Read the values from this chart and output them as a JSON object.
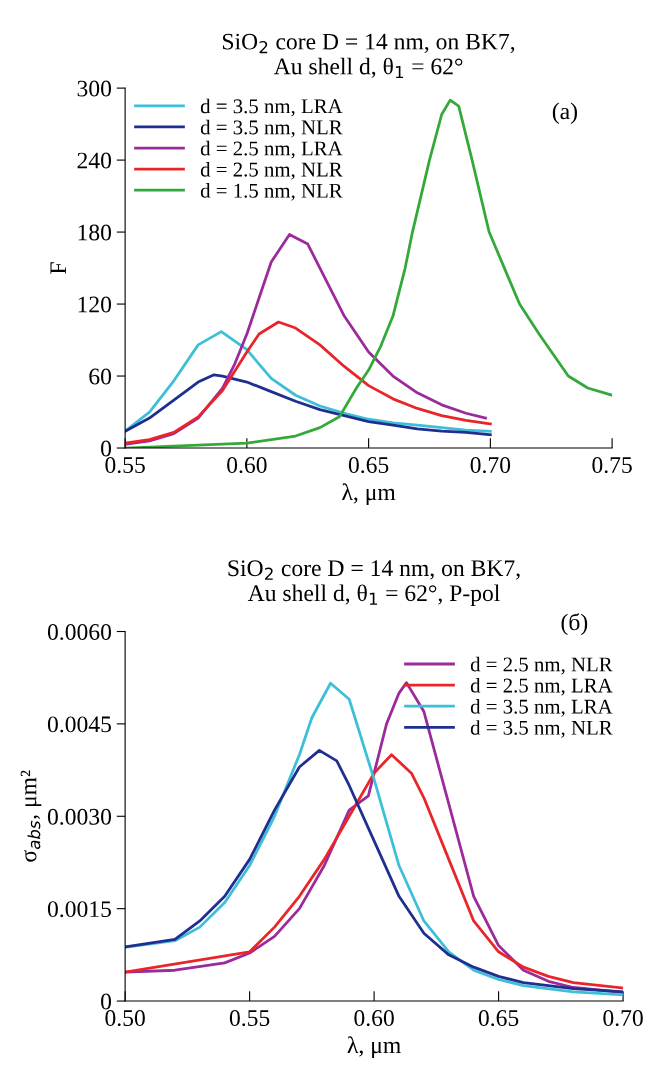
{
  "chart_data": [
    {
      "type": "line",
      "title": "SiO$_{2}$ core D = 14 nm, on BK7,\nAu shell d, θ$_{1}$ = 62°",
      "xlabel": "λ, μm",
      "ylabel": "F",
      "annotations": [
        "(a)"
      ],
      "xlim": [
        0.55,
        0.75
      ],
      "xticks": [
        0.55,
        {
          "value": 0.6,
          "label": "0.60"
        },
        0.65,
        {
          "value": 0.7,
          "label": "0.70"
        },
        0.75
      ],
      "ylim": [
        0,
        300
      ],
      "yticks": [
        0,
        60,
        120,
        180,
        240,
        300
      ],
      "grid": false,
      "legend": "top left",
      "series": [
        {
          "name": "d = 3.5 nm, LRA",
          "color": "#3dbfd8",
          "x": [
            0.55,
            0.56,
            0.57,
            0.58,
            0.5895,
            0.6,
            0.605,
            0.61,
            0.62,
            0.63,
            0.64,
            0.65,
            0.66,
            0.67,
            0.68,
            0.69,
            0.7
          ],
          "values": [
            14,
            30,
            56,
            86,
            97,
            82,
            70,
            58,
            44,
            35,
            29,
            24,
            21,
            19,
            17,
            15,
            14
          ]
        },
        {
          "name": "d = 3.5 nm, NLR",
          "color": "#1f2f8f",
          "x": [
            0.55,
            0.56,
            0.57,
            0.58,
            0.5865,
            0.59,
            0.6,
            0.61,
            0.62,
            0.63,
            0.64,
            0.65,
            0.66,
            0.67,
            0.68,
            0.69,
            0.7
          ],
          "values": [
            14,
            25,
            40,
            55,
            61,
            60,
            55,
            47,
            39,
            32,
            27,
            22,
            19,
            16,
            14,
            13,
            11
          ]
        },
        {
          "name": "d = 2.5 nm, LRA",
          "color": "#9b2a9b",
          "x": [
            0.55,
            0.56,
            0.57,
            0.58,
            0.59,
            0.595,
            0.6,
            0.605,
            0.61,
            0.6175,
            0.625,
            0.63,
            0.64,
            0.65,
            0.66,
            0.67,
            0.68,
            0.69,
            0.698
          ],
          "values": [
            3,
            6,
            12,
            25,
            50,
            70,
            95,
            125,
            155,
            178,
            170,
            150,
            110,
            80,
            60,
            46,
            36,
            29,
            25
          ]
        },
        {
          "name": "d = 2.5 nm, NLR",
          "color": "#e8262a",
          "x": [
            0.55,
            0.56,
            0.57,
            0.58,
            0.59,
            0.6,
            0.605,
            0.613,
            0.62,
            0.63,
            0.64,
            0.65,
            0.66,
            0.67,
            0.68,
            0.69,
            0.7
          ],
          "values": [
            4,
            7,
            13,
            26,
            48,
            80,
            95,
            105,
            100,
            86,
            68,
            52,
            41,
            33,
            27,
            23,
            20
          ]
        },
        {
          "name": "d = 1.5 nm, NLR",
          "color": "#34a93a",
          "x": [
            0.55,
            0.6,
            0.62,
            0.63,
            0.638,
            0.645,
            0.65,
            0.655,
            0.66,
            0.665,
            0.668,
            0.675,
            0.68,
            0.6835,
            0.687,
            0.6925,
            0.6995,
            0.712,
            0.72,
            0.732,
            0.74,
            0.75
          ],
          "values": [
            0,
            4,
            10,
            17,
            26,
            50,
            65,
            85,
            110,
            150,
            180,
            240,
            278,
            290,
            285,
            240,
            180,
            120,
            95,
            60,
            50,
            44
          ]
        }
      ]
    },
    {
      "type": "line",
      "title": "SiO$_{2}$ core D = 14 nm, on BK7,\nAu shell d, θ$_{1}$ = 62°, P-pol",
      "xlabel": "λ, μm",
      "ylabel": "σ$_{abs}$, μm²",
      "annotations": [
        "(б)"
      ],
      "xlim": [
        0.5,
        0.7
      ],
      "xticks": [
        {
          "value": 0.5,
          "label": "0.50"
        },
        0.55,
        {
          "value": 0.6,
          "label": "0.60"
        },
        0.65,
        {
          "value": 0.7,
          "label": "0.70"
        }
      ],
      "ylim": [
        0,
        0.006
      ],
      "yticks": [
        0,
        0.0015,
        {
          "value": 0.003,
          "label": "0.0030"
        },
        0.0045,
        {
          "value": 0.006,
          "label": "0.0060"
        }
      ],
      "grid": false,
      "legend": "top right",
      "series": [
        {
          "name": "d = 2.5 nm, NLR",
          "color": "#9b2a9b",
          "x": [
            0.5,
            0.52,
            0.54,
            0.55,
            0.56,
            0.57,
            0.58,
            0.59,
            0.5977,
            0.6,
            0.605,
            0.61,
            0.613,
            0.62,
            0.63,
            0.64,
            0.65,
            0.66,
            0.67,
            0.68,
            0.7
          ],
          "values": [
            0.00047,
            0.0005,
            0.00062,
            0.00078,
            0.00105,
            0.0015,
            0.0022,
            0.0031,
            0.00333,
            0.0037,
            0.0045,
            0.005,
            0.00517,
            0.0047,
            0.0032,
            0.0017,
            0.0009,
            0.0005,
            0.00032,
            0.00022,
            0.00014
          ]
        },
        {
          "name": "d = 2.5 nm, LRA",
          "color": "#e8262a",
          "x": [
            0.5,
            0.55,
            0.56,
            0.57,
            0.58,
            0.59,
            0.6,
            0.607,
            0.615,
            0.62,
            0.63,
            0.64,
            0.65,
            0.66,
            0.67,
            0.68,
            0.7
          ],
          "values": [
            0.00047,
            0.0008,
            0.0012,
            0.0017,
            0.0023,
            0.003,
            0.0037,
            0.004,
            0.0037,
            0.0033,
            0.0023,
            0.0013,
            0.0008,
            0.00055,
            0.0004,
            0.0003,
            0.00021
          ]
        },
        {
          "name": "d = 3.5 nm, LRA",
          "color": "#3dbfd8",
          "x": [
            0.5,
            0.52,
            0.53,
            0.54,
            0.55,
            0.56,
            0.57,
            0.575,
            0.5825,
            0.59,
            0.6,
            0.61,
            0.62,
            0.63,
            0.64,
            0.65,
            0.66,
            0.68,
            0.7
          ],
          "values": [
            0.00087,
            0.00098,
            0.0012,
            0.0016,
            0.0022,
            0.003,
            0.004,
            0.0046,
            0.00516,
            0.0049,
            0.0036,
            0.0022,
            0.0013,
            0.0008,
            0.0005,
            0.00035,
            0.00025,
            0.00015,
            0.0001
          ]
        },
        {
          "name": "d = 3.5 nm, NLR",
          "color": "#1f2f8f",
          "x": [
            0.5,
            0.52,
            0.53,
            0.54,
            0.55,
            0.56,
            0.57,
            0.578,
            0.585,
            0.59,
            0.6,
            0.61,
            0.62,
            0.63,
            0.64,
            0.65,
            0.66,
            0.68,
            0.7
          ],
          "values": [
            0.00088,
            0.001,
            0.0013,
            0.0017,
            0.0023,
            0.0031,
            0.0038,
            0.00407,
            0.0039,
            0.0035,
            0.0026,
            0.0017,
            0.0011,
            0.00075,
            0.00055,
            0.0004,
            0.0003,
            0.0002,
            0.00015
          ]
        }
      ]
    }
  ]
}
